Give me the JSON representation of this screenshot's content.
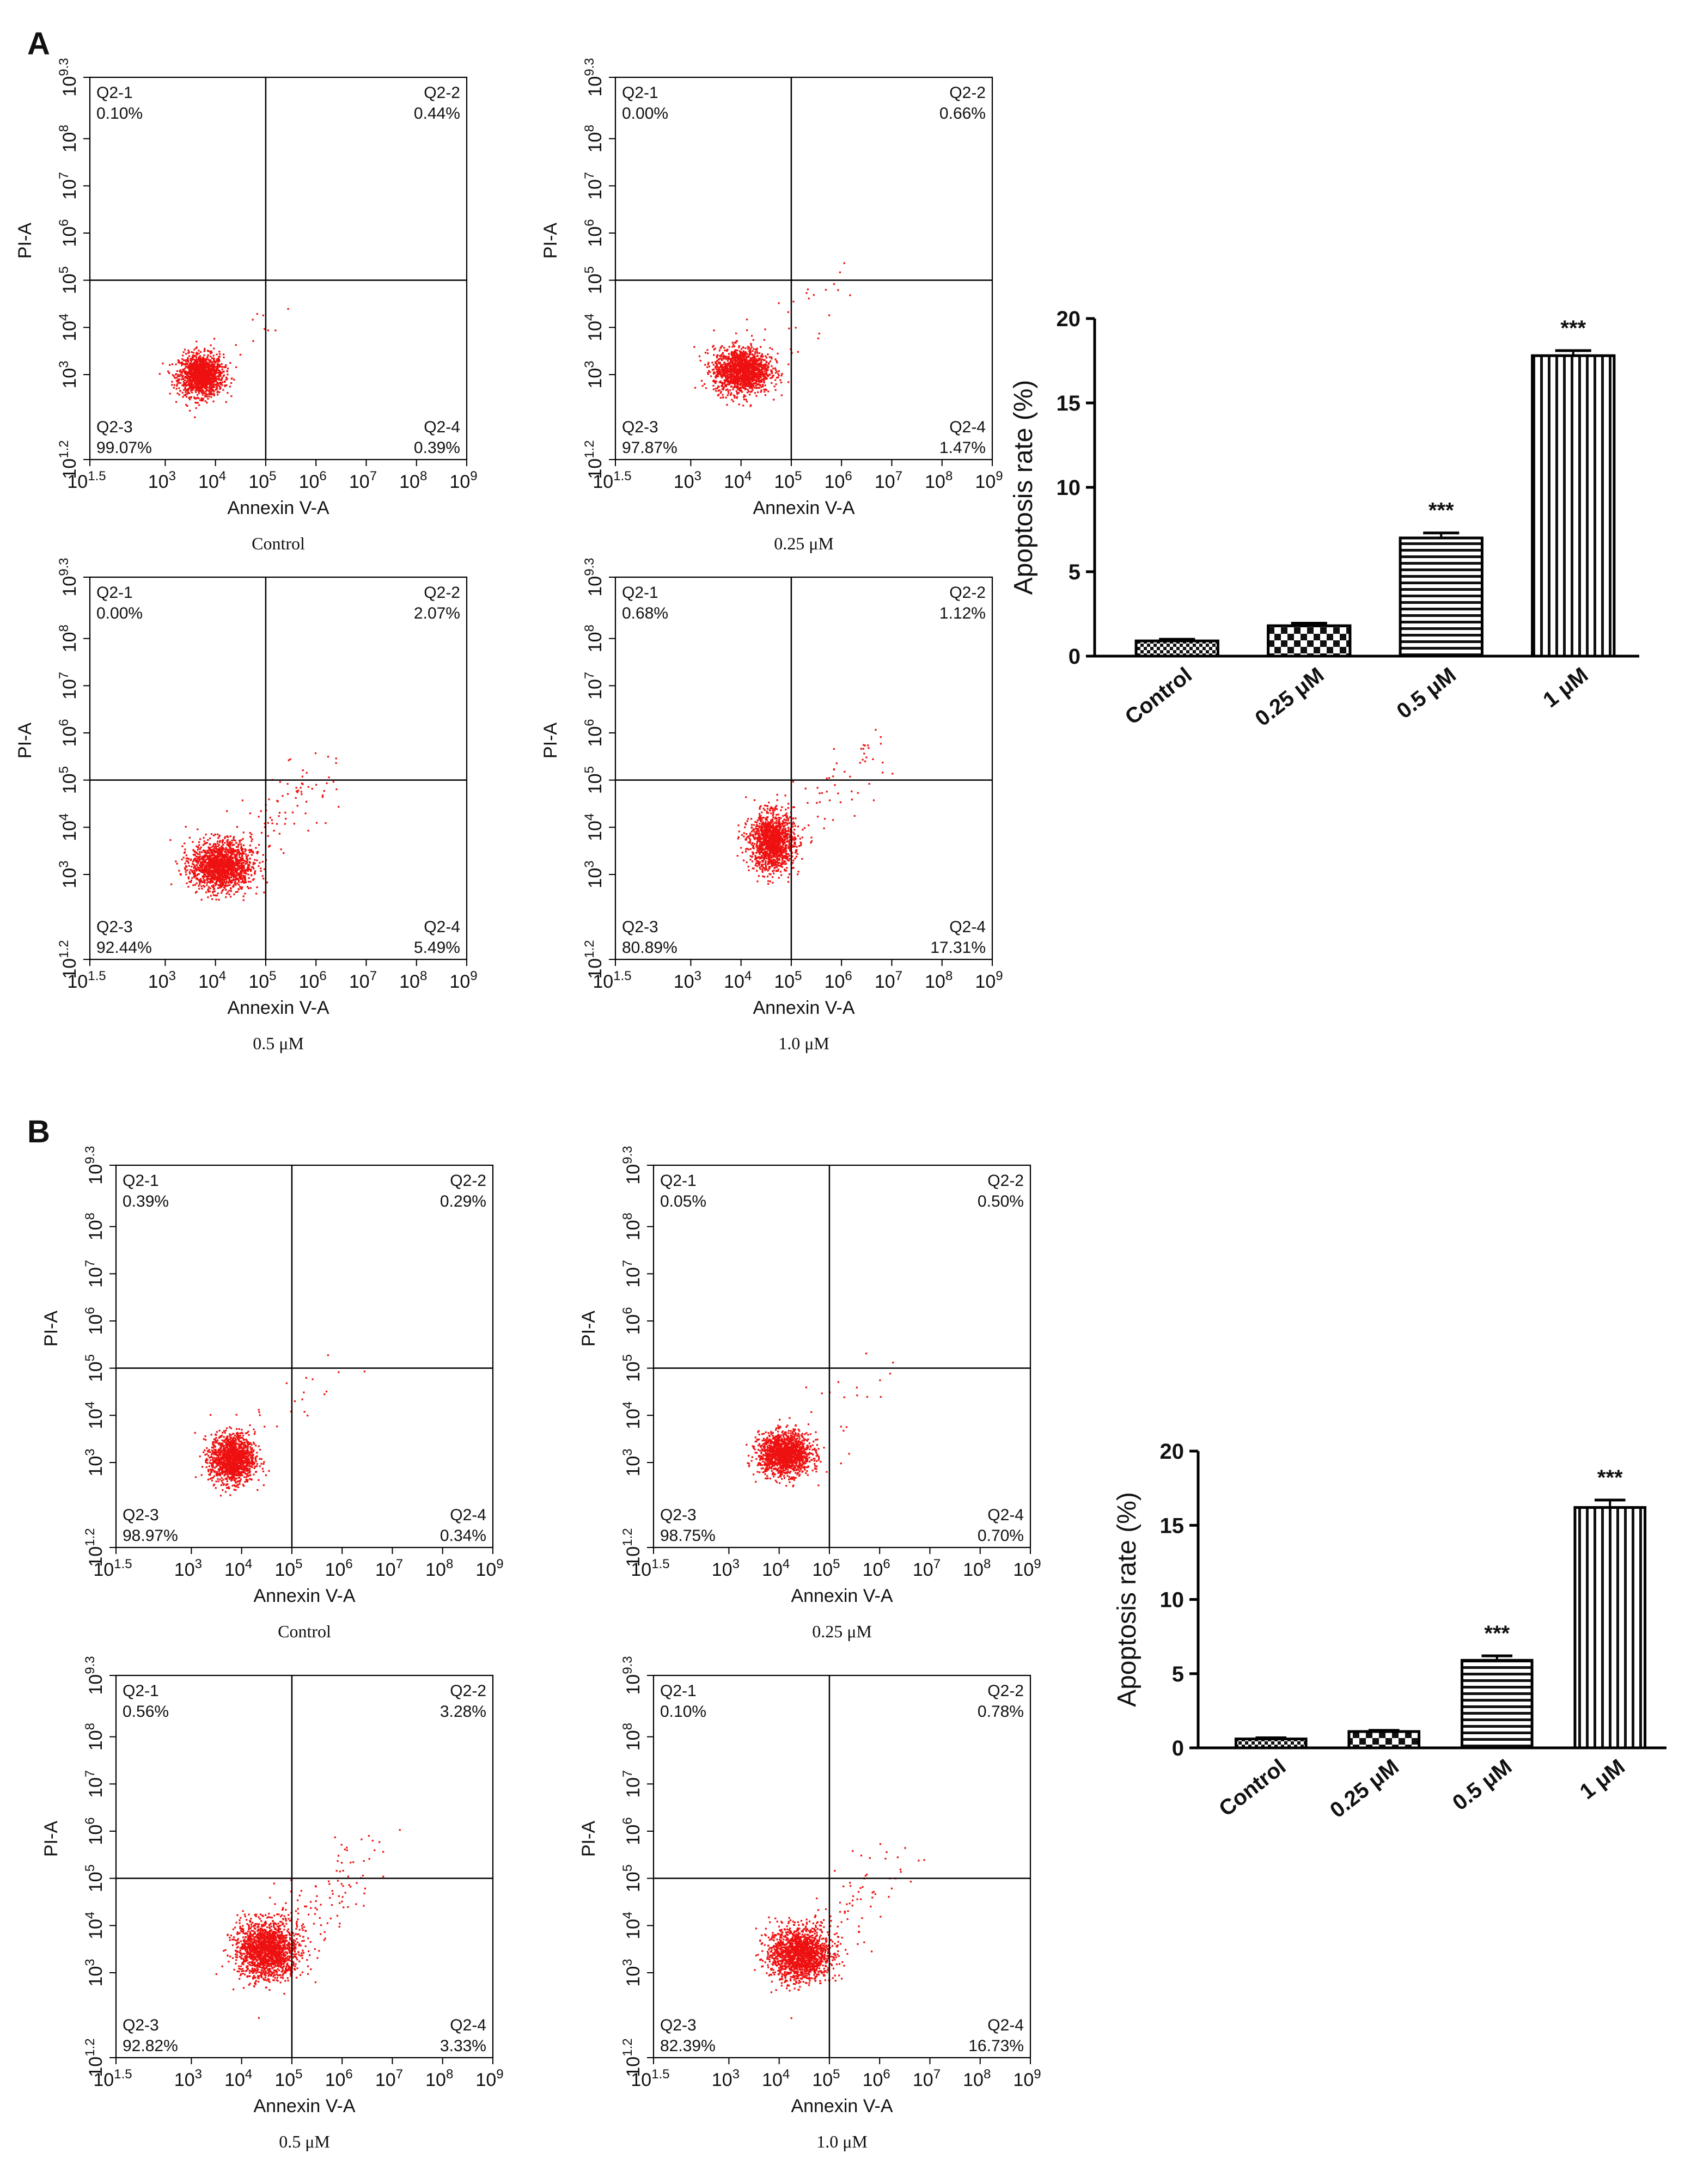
{
  "colors": {
    "dot": "#ee1111",
    "ink": "#111111",
    "axis": "#000000"
  },
  "panels": [
    {
      "label": "A",
      "flow": [
        {
          "caption": "Control",
          "q1": [
            "Q2-1",
            "0.10%"
          ],
          "q2": [
            "Q2-2",
            "0.44%"
          ],
          "q3": [
            "Q2-3",
            "99.07%"
          ],
          "q4": [
            "Q2-4",
            "0.39%"
          ],
          "cx": 3.7,
          "cy": 3.0,
          "sx": 0.22,
          "sy": 0.22,
          "n": 1400,
          "tail": 12
        },
        {
          "caption": "0.25 μM",
          "q1": [
            "Q2-1",
            "0.00%"
          ],
          "q2": [
            "Q2-2",
            "0.66%"
          ],
          "q3": [
            "Q2-3",
            "97.87%"
          ],
          "q4": [
            "Q2-4",
            "1.47%"
          ],
          "cx": 4.0,
          "cy": 3.1,
          "sx": 0.28,
          "sy": 0.24,
          "n": 1500,
          "tail": 30
        },
        {
          "caption": "0.5 μM",
          "q1": [
            "Q2-1",
            "0.00%"
          ],
          "q2": [
            "Q2-2",
            "2.07%"
          ],
          "q3": [
            "Q2-3",
            "92.44%"
          ],
          "q4": [
            "Q2-4",
            "5.49%"
          ],
          "cx": 4.1,
          "cy": 3.2,
          "sx": 0.3,
          "sy": 0.26,
          "n": 1600,
          "tail": 90
        },
        {
          "caption": "1.0 μM",
          "q1": [
            "Q2-1",
            "0.68%"
          ],
          "q2": [
            "Q2-2",
            "1.12%"
          ],
          "q3": [
            "Q2-3",
            "80.89%"
          ],
          "q4": [
            "Q2-4",
            "17.31%"
          ],
          "cx": 4.6,
          "cy": 3.7,
          "sx": 0.22,
          "sy": 0.3,
          "n": 1400,
          "tail": 60
        }
      ],
      "bar": {
        "ylabel": "Apoptosis rate (%)",
        "ylim": [
          0,
          20
        ],
        "yticks": [
          "0",
          "5",
          "10",
          "15",
          "20"
        ],
        "categories": [
          "Control",
          "0.25 μM",
          "0.5 μM",
          "1 μM"
        ],
        "values": [
          0.9,
          1.8,
          7.0,
          17.8
        ],
        "errors": [
          0.1,
          0.15,
          0.3,
          0.3
        ],
        "significance": [
          "",
          "",
          "***",
          "***"
        ],
        "patterns": [
          "check-small",
          "check-large",
          "hlines",
          "vlines"
        ]
      }
    },
    {
      "label": "B",
      "flow": [
        {
          "caption": "Control",
          "q1": [
            "Q2-1",
            "0.39%"
          ],
          "q2": [
            "Q2-2",
            "0.29%"
          ],
          "q3": [
            "Q2-3",
            "98.97%"
          ],
          "q4": [
            "Q2-4",
            "0.34%"
          ],
          "cx": 3.8,
          "cy": 3.1,
          "sx": 0.22,
          "sy": 0.26,
          "n": 1400,
          "tail": 20
        },
        {
          "caption": "0.25 μM",
          "q1": [
            "Q2-1",
            "0.05%"
          ],
          "q2": [
            "Q2-2",
            "0.50%"
          ],
          "q3": [
            "Q2-3",
            "98.75%"
          ],
          "q4": [
            "Q2-4",
            "0.70%"
          ],
          "cx": 4.1,
          "cy": 3.2,
          "sx": 0.26,
          "sy": 0.22,
          "n": 1500,
          "tail": 25
        },
        {
          "caption": "0.5 μM",
          "q1": [
            "Q2-1",
            "0.56%"
          ],
          "q2": [
            "Q2-2",
            "3.28%"
          ],
          "q3": [
            "Q2-3",
            "92.82%"
          ],
          "q4": [
            "Q2-4",
            "3.33%"
          ],
          "cx": 4.5,
          "cy": 3.5,
          "sx": 0.3,
          "sy": 0.3,
          "n": 1700,
          "tail": 110
        },
        {
          "caption": "1.0 μM",
          "q1": [
            "Q2-1",
            "0.10%"
          ],
          "q2": [
            "Q2-2",
            "0.78%"
          ],
          "q3": [
            "Q2-3",
            "82.39%"
          ],
          "q4": [
            "Q2-4",
            "16.73%"
          ],
          "cx": 4.4,
          "cy": 3.4,
          "sx": 0.3,
          "sy": 0.28,
          "n": 1700,
          "tail": 70
        }
      ],
      "bar": {
        "ylabel": "Apoptosis rate (%)",
        "ylim": [
          0,
          20
        ],
        "yticks": [
          "0",
          "5",
          "10",
          "15",
          "20"
        ],
        "categories": [
          "Control",
          "0.25 μM",
          "0.5 μM",
          "1 μM"
        ],
        "values": [
          0.6,
          1.1,
          5.9,
          16.2
        ],
        "errors": [
          0.08,
          0.08,
          0.3,
          0.5
        ],
        "significance": [
          "",
          "",
          "***",
          "***"
        ],
        "patterns": [
          "check-small",
          "check-large",
          "hlines",
          "vlines"
        ]
      }
    }
  ],
  "flow_axes": {
    "xlabel": "Annexin V-A",
    "ylabel": "PI-A",
    "xlim_log": [
      1.5,
      9
    ],
    "ylim_log": [
      1.2,
      9.3
    ],
    "x_gate_log": 5,
    "y_gate_log": 5,
    "x_ticks": [
      {
        "base": "10",
        "exp": "1.5",
        "v": 1.5
      },
      {
        "base": "10",
        "exp": "3",
        "v": 3
      },
      {
        "base": "10",
        "exp": "4",
        "v": 4
      },
      {
        "base": "10",
        "exp": "5",
        "v": 5
      },
      {
        "base": "10",
        "exp": "6",
        "v": 6
      },
      {
        "base": "10",
        "exp": "7",
        "v": 7
      },
      {
        "base": "10",
        "exp": "8",
        "v": 8
      },
      {
        "base": "10",
        "exp": "9",
        "v": 9
      }
    ],
    "y_ticks": [
      {
        "base": "10",
        "exp": "1.2",
        "v": 1.2
      },
      {
        "base": "10",
        "exp": "3",
        "v": 3
      },
      {
        "base": "10",
        "exp": "4",
        "v": 4
      },
      {
        "base": "10",
        "exp": "5",
        "v": 5
      },
      {
        "base": "10",
        "exp": "6",
        "v": 6
      },
      {
        "base": "10",
        "exp": "7",
        "v": 7
      },
      {
        "base": "10",
        "exp": "8",
        "v": 8
      },
      {
        "base": "10",
        "exp": "9.3",
        "v": 9.3
      }
    ]
  }
}
